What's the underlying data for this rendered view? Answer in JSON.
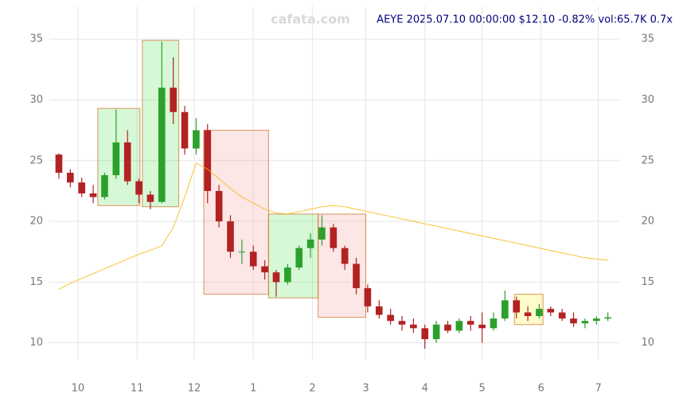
{
  "chart_data": {
    "type": "candlestick",
    "title": "AEYE 2025.07.10 00:00:00 $12.10 -0.82% vol:65.7K 0.7x",
    "watermark": "cafata.com",
    "xlim": [
      -15,
      284
    ],
    "ylim": [
      8.6,
      37.7
    ],
    "yticks": [
      10,
      15,
      20,
      25,
      30,
      35
    ],
    "xticks": [
      {
        "value": 0,
        "label": "10"
      },
      {
        "value": 31,
        "label": "11"
      },
      {
        "value": 61,
        "label": "12"
      },
      {
        "value": 92,
        "label": "1"
      },
      {
        "value": 123,
        "label": "2"
      },
      {
        "value": 151,
        "label": "3"
      },
      {
        "value": 182,
        "label": "4"
      },
      {
        "value": 212,
        "label": "5"
      },
      {
        "value": 243,
        "label": "6"
      },
      {
        "value": 273,
        "label": "7"
      }
    ],
    "grid": true,
    "up_color": "#2ca02c",
    "down_color": "#b22222",
    "x": [
      -10,
      -4,
      2,
      8,
      14,
      20,
      26,
      32,
      38,
      44,
      50,
      56,
      62,
      68,
      74,
      80,
      86,
      92,
      98,
      104,
      110,
      116,
      122,
      128,
      134,
      140,
      146,
      152,
      158,
      164,
      170,
      176,
      182,
      188,
      194,
      200,
      206,
      212,
      218,
      224,
      230,
      236,
      242,
      248,
      254,
      260,
      266,
      272,
      278
    ],
    "open": [
      25.5,
      24,
      23.2,
      22.3,
      22,
      23.8,
      26.5,
      23.3,
      22.2,
      21.6,
      31,
      29,
      26,
      27.5,
      22.5,
      20,
      17.5,
      17.5,
      16.3,
      15.8,
      15,
      16.2,
      17.8,
      18.5,
      19.5,
      17.8,
      16.5,
      14.5,
      13,
      12.3,
      11.8,
      11.5,
      11.2,
      10.3,
      11.5,
      11,
      11.8,
      11.5,
      11.2,
      12,
      13.5,
      12.5,
      12.2,
      12.8,
      12.5,
      12,
      11.6,
      11.8,
      12
    ],
    "high": [
      25.6,
      24.3,
      23.6,
      23,
      24,
      29.2,
      27.5,
      23.5,
      22.5,
      34.8,
      33.5,
      29.5,
      28.5,
      28,
      23,
      20.5,
      18.5,
      18,
      16.8,
      16,
      16.5,
      18,
      19,
      20.5,
      19.8,
      18,
      17,
      14.8,
      13.5,
      12.8,
      12.2,
      12,
      11.5,
      11.8,
      11.8,
      12,
      12.2,
      12.5,
      12.5,
      14.3,
      13.8,
      13,
      13.2,
      13,
      12.8,
      12.5,
      12,
      12.2,
      12.5
    ],
    "low": [
      23.5,
      22.8,
      22,
      21.5,
      21.8,
      23.5,
      23,
      21.5,
      21,
      21.5,
      28,
      25.5,
      25.5,
      21.5,
      19.5,
      17,
      16.5,
      16,
      15.2,
      13.8,
      14.8,
      16,
      17,
      18,
      17.5,
      16,
      14,
      12.5,
      12,
      11.5,
      11,
      10.8,
      9.5,
      10,
      10.8,
      10.8,
      11,
      10,
      11,
      11.8,
      12,
      11.8,
      12,
      12.2,
      11.8,
      11.3,
      11.2,
      11.5,
      11.8
    ],
    "close": [
      24,
      23.2,
      22.3,
      22,
      23.8,
      26.5,
      23.3,
      22.2,
      21.6,
      31,
      29,
      26,
      27.5,
      22.5,
      20,
      17.5,
      17.5,
      16.3,
      15.8,
      15,
      16.2,
      17.8,
      18.5,
      19.5,
      17.8,
      16.5,
      14.5,
      13,
      12.3,
      11.8,
      11.5,
      11.2,
      10.3,
      11.5,
      11,
      11.8,
      11.5,
      11.2,
      12,
      13.5,
      12.5,
      12.2,
      12.8,
      12.5,
      12,
      11.6,
      11.8,
      12,
      12.1
    ],
    "ma": {
      "color": "#f5b800",
      "values": [
        14.4,
        14.9,
        15.3,
        15.7,
        16.1,
        16.5,
        16.9,
        17.3,
        17.6,
        18.0,
        19.5,
        22.0,
        24.8,
        24.3,
        23.5,
        22.7,
        22.0,
        21.5,
        21.0,
        20.7,
        20.6,
        20.8,
        21.0,
        21.2,
        21.3,
        21.2,
        21.0,
        20.8,
        20.6,
        20.4,
        20.2,
        20.0,
        19.8,
        19.6,
        19.4,
        19.2,
        19.0,
        18.8,
        18.6,
        18.4,
        18.2,
        18.0,
        17.8,
        17.6,
        17.4,
        17.2,
        17.0,
        16.9,
        16.8
      ]
    },
    "zones": [
      {
        "x": [
          10.4,
          32.5
        ],
        "y": [
          21.3,
          29.3
        ],
        "color": "#33dd33"
      },
      {
        "x": [
          33.8,
          52.9
        ],
        "y": [
          21.2,
          34.9
        ],
        "color": "#33dd33"
      },
      {
        "x": [
          66,
          100
        ],
        "y": [
          14,
          27.5
        ],
        "color": "#f08080"
      },
      {
        "x": [
          100,
          126
        ],
        "y": [
          13.7,
          20.6
        ],
        "color": "#33dd33"
      },
      {
        "x": [
          126,
          151
        ],
        "y": [
          12.1,
          20.6
        ],
        "color": "#f08080"
      },
      {
        "x": [
          229,
          244
        ],
        "y": [
          11.5,
          14
        ],
        "color": "#ffee00"
      }
    ]
  }
}
